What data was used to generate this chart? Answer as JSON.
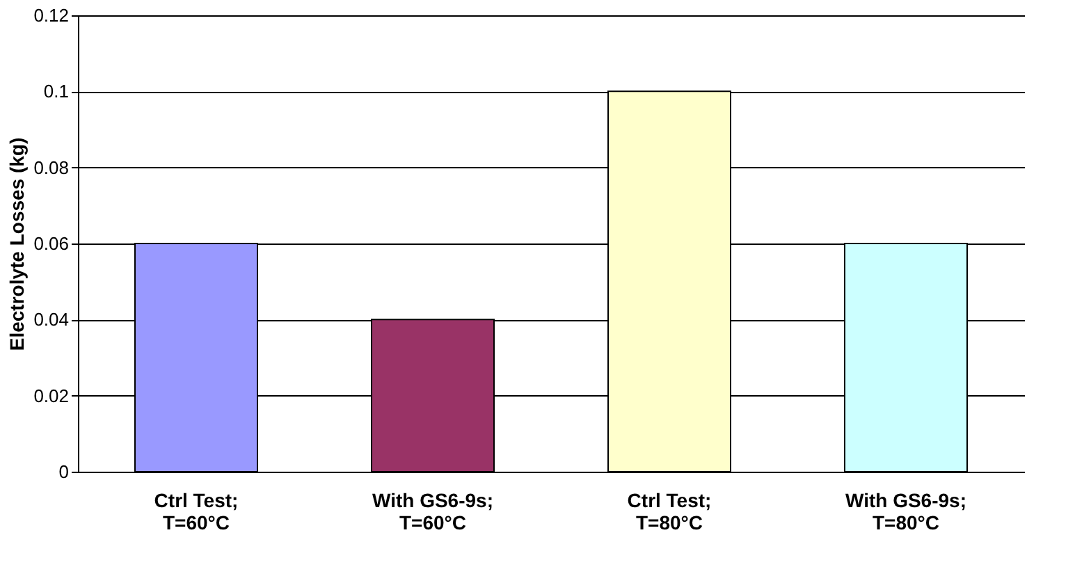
{
  "chart_data": {
    "type": "bar",
    "ylabel": "Electrolyte Losses (kg)",
    "categories": [
      "Ctrl Test; T=60°C",
      "With GS6-9s; T=60°C",
      "Ctrl Test; T=80°C",
      "With GS6-9s; T=80°C"
    ],
    "values": [
      0.06,
      0.04,
      0.1,
      0.06
    ],
    "colors": [
      "#9999ff",
      "#993366",
      "#ffffcc",
      "#ccffff"
    ],
    "ylim": [
      0,
      0.12
    ],
    "yticks": [
      0,
      0.02,
      0.04,
      0.06,
      0.08,
      0.1,
      0.12
    ],
    "grid": "y"
  }
}
